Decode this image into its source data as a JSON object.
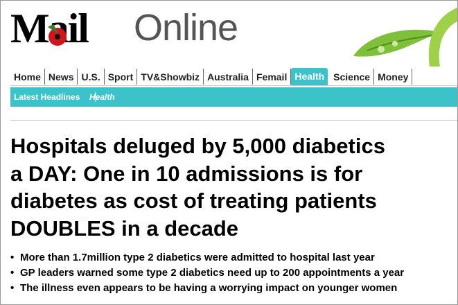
{
  "header": {
    "logo_left": "Mail",
    "logo_right": "Online"
  },
  "nav": {
    "items": [
      "Home",
      "News",
      "U.S.",
      "Sport",
      "TV&Showbiz",
      "Australia",
      "Femail",
      "Health",
      "Science",
      "Money"
    ]
  },
  "subnav": {
    "items": [
      "Latest Headlines",
      "Health"
    ]
  },
  "article": {
    "headline_lines": [
      "Hospitals deluged by 5,000 diabetics",
      "a DAY: One in 10 admissions is for",
      "diabetes as cost of treating patients",
      "DOUBLES in a decade"
    ],
    "bullets": [
      "More than 1.7million type 2 diabetics were admitted to hospital last year",
      "GP leaders warned some type 2 diabetics need up to 200 appointments a year",
      "The illness even appears to be having a worrying impact on younger women"
    ]
  }
}
